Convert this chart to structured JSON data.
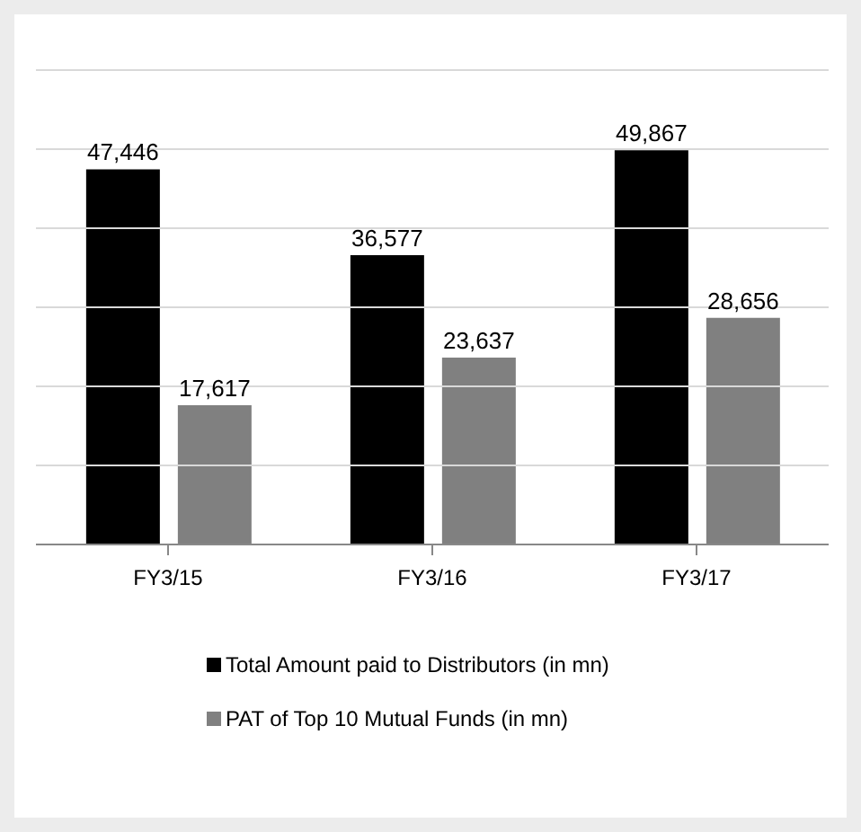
{
  "chart_data": {
    "type": "bar",
    "categories": [
      "FY3/15",
      "FY3/16",
      "FY3/17"
    ],
    "series": [
      {
        "name": "Total Amount paid to Distributors (in mn)",
        "color": "#000000",
        "values": [
          47446,
          36577,
          49867
        ],
        "value_labels": [
          "47,446",
          "36,577",
          "49,867"
        ]
      },
      {
        "name": "PAT of Top 10 Mutual Funds (in mn)",
        "color": "#808080",
        "values": [
          17617,
          23637,
          28656
        ],
        "value_labels": [
          "17,617",
          "23,637",
          "28,656"
        ]
      }
    ],
    "ylim": [
      0,
      60000
    ],
    "yticks": [
      {
        "value": 0,
        "label": null
      },
      {
        "value": 10000,
        "label": null
      },
      {
        "value": 20000,
        "label": null
      },
      {
        "value": 30000,
        "label": null
      },
      {
        "value": 40000,
        "label": null
      },
      {
        "value": 50000,
        "label": null
      },
      {
        "value": 60000,
        "label": null
      }
    ],
    "tick_labels": "x",
    "grid": "y",
    "legend": "bottom"
  }
}
